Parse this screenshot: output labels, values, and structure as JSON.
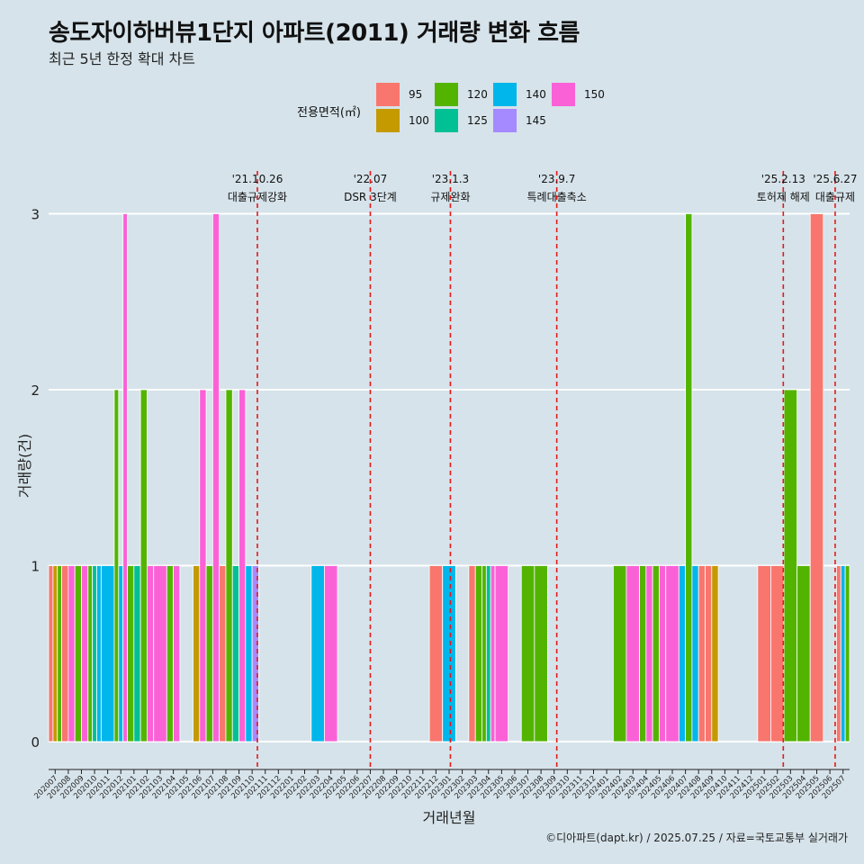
{
  "header": {
    "title": "송도자이하버뷰1단지 아파트(2011) 거래량 변화 흐름",
    "subtitle": "최근 5년 한정 확대 차트"
  },
  "legend": {
    "title": "전용면적(㎡)",
    "items": [
      {
        "label": "95",
        "color": "#F8766D"
      },
      {
        "label": "100",
        "color": "#C49A00"
      },
      {
        "label": "120",
        "color": "#53B400"
      },
      {
        "label": "125",
        "color": "#00C094"
      },
      {
        "label": "140",
        "color": "#00B6EB"
      },
      {
        "label": "145",
        "color": "#A58AFF"
      },
      {
        "label": "150",
        "color": "#FB61D7"
      }
    ]
  },
  "caption": "©디아파트(dapt.kr) / 2025.07.25 / 자료=국토교통부 실거래가",
  "chart_data": {
    "type": "bar",
    "title": "송도자이하버뷰1단지 아파트(2011) 거래량 변화 흐름",
    "xlabel": "거래년월",
    "ylabel": "거래량(건)",
    "ylim": [
      0,
      3
    ],
    "yticks": [
      0,
      1,
      2,
      3
    ],
    "categories": [
      "202007",
      "202008",
      "202009",
      "202010",
      "202011",
      "202012",
      "202101",
      "202102",
      "202103",
      "202104",
      "202105",
      "202106",
      "202107",
      "202108",
      "202109",
      "202110",
      "202111",
      "202112",
      "202201",
      "202202",
      "202203",
      "202204",
      "202205",
      "202206",
      "202207",
      "202208",
      "202209",
      "202210",
      "202211",
      "202212",
      "202301",
      "202302",
      "202303",
      "202304",
      "202305",
      "202306",
      "202307",
      "202308",
      "202309",
      "202310",
      "202311",
      "202312",
      "202401",
      "202402",
      "202403",
      "202404",
      "202405",
      "202406",
      "202407",
      "202408",
      "202409",
      "202410",
      "202411",
      "202412",
      "202501",
      "202502",
      "202503",
      "202504",
      "202505",
      "202506",
      "202507"
    ],
    "bars": [
      {
        "month": "202007",
        "groups": [
          {
            "area": "95",
            "value": 1
          },
          {
            "area": "100",
            "value": 1
          },
          {
            "area": "120",
            "value": 1
          }
        ]
      },
      {
        "month": "202008",
        "groups": [
          {
            "area": "95",
            "value": 1
          },
          {
            "area": "150",
            "value": 1
          }
        ]
      },
      {
        "month": "202009",
        "groups": [
          {
            "area": "120",
            "value": 1
          },
          {
            "area": "150",
            "value": 1
          }
        ]
      },
      {
        "month": "202010",
        "groups": [
          {
            "area": "120",
            "value": 1
          },
          {
            "area": "125",
            "value": 1
          },
          {
            "area": "140",
            "value": 1
          }
        ]
      },
      {
        "month": "202011",
        "groups": [
          {
            "area": "140",
            "value": 1
          }
        ]
      },
      {
        "month": "202012",
        "groups": [
          {
            "area": "120",
            "value": 2
          },
          {
            "area": "140",
            "value": 1
          },
          {
            "area": "150",
            "value": 3
          }
        ]
      },
      {
        "month": "202101",
        "groups": [
          {
            "area": "120",
            "value": 1
          },
          {
            "area": "125",
            "value": 1
          }
        ]
      },
      {
        "month": "202102",
        "groups": [
          {
            "area": "120",
            "value": 2
          },
          {
            "area": "150",
            "value": 1
          }
        ]
      },
      {
        "month": "202103",
        "groups": [
          {
            "area": "150",
            "value": 1
          }
        ]
      },
      {
        "month": "202104",
        "groups": [
          {
            "area": "120",
            "value": 1
          },
          {
            "area": "150",
            "value": 1
          }
        ]
      },
      {
        "month": "202106",
        "groups": [
          {
            "area": "100",
            "value": 1
          },
          {
            "area": "150",
            "value": 2
          }
        ]
      },
      {
        "month": "202107",
        "groups": [
          {
            "area": "120",
            "value": 1
          },
          {
            "area": "150",
            "value": 3
          }
        ]
      },
      {
        "month": "202108",
        "groups": [
          {
            "area": "95",
            "value": 1
          },
          {
            "area": "120",
            "value": 2
          }
        ]
      },
      {
        "month": "202109",
        "groups": [
          {
            "area": "125",
            "value": 1
          },
          {
            "area": "150",
            "value": 2
          }
        ]
      },
      {
        "month": "202110",
        "groups": [
          {
            "area": "140",
            "value": 1
          },
          {
            "area": "145",
            "value": 1
          }
        ]
      },
      {
        "month": "202203",
        "groups": [
          {
            "area": "140",
            "value": 1
          }
        ]
      },
      {
        "month": "202204",
        "groups": [
          {
            "area": "150",
            "value": 1
          }
        ]
      },
      {
        "month": "202212",
        "groups": [
          {
            "area": "95",
            "value": 1
          }
        ]
      },
      {
        "month": "202301",
        "groups": [
          {
            "area": "140",
            "value": 1
          }
        ]
      },
      {
        "month": "202303",
        "groups": [
          {
            "area": "95",
            "value": 1
          },
          {
            "area": "120",
            "value": 1
          }
        ]
      },
      {
        "month": "202304",
        "groups": [
          {
            "area": "120",
            "value": 1
          },
          {
            "area": "125",
            "value": 1
          },
          {
            "area": "150",
            "value": 1
          }
        ]
      },
      {
        "month": "202305",
        "groups": [
          {
            "area": "150",
            "value": 1
          }
        ]
      },
      {
        "month": "202307",
        "groups": [
          {
            "area": "120",
            "value": 1
          }
        ]
      },
      {
        "month": "202308",
        "groups": [
          {
            "area": "120",
            "value": 1
          }
        ]
      },
      {
        "month": "202402",
        "groups": [
          {
            "area": "120",
            "value": 1
          }
        ]
      },
      {
        "month": "202403",
        "groups": [
          {
            "area": "150",
            "value": 1
          }
        ]
      },
      {
        "month": "202404",
        "groups": [
          {
            "area": "120",
            "value": 1
          },
          {
            "area": "150",
            "value": 1
          }
        ]
      },
      {
        "month": "202405",
        "groups": [
          {
            "area": "120",
            "value": 1
          },
          {
            "area": "150",
            "value": 1
          }
        ]
      },
      {
        "month": "202406",
        "groups": [
          {
            "area": "150",
            "value": 1
          }
        ]
      },
      {
        "month": "202407",
        "groups": [
          {
            "area": "140",
            "value": 1
          },
          {
            "area": "120",
            "value": 3
          }
        ]
      },
      {
        "month": "202408",
        "groups": [
          {
            "area": "140",
            "value": 1
          },
          {
            "area": "95",
            "value": 1
          }
        ]
      },
      {
        "month": "202409",
        "groups": [
          {
            "area": "95",
            "value": 1
          },
          {
            "area": "100",
            "value": 1
          }
        ]
      },
      {
        "month": "202501",
        "groups": [
          {
            "area": "95",
            "value": 1
          }
        ]
      },
      {
        "month": "202502",
        "groups": [
          {
            "area": "95",
            "value": 1
          }
        ]
      },
      {
        "month": "202503",
        "groups": [
          {
            "area": "120",
            "value": 2
          }
        ]
      },
      {
        "month": "202504",
        "groups": [
          {
            "area": "120",
            "value": 1
          }
        ]
      },
      {
        "month": "202505",
        "groups": [
          {
            "area": "95",
            "value": 3
          }
        ]
      },
      {
        "month": "202507",
        "groups": [
          {
            "area": "95",
            "value": 1
          },
          {
            "area": "140",
            "value": 1
          },
          {
            "area": "120",
            "value": 1
          }
        ]
      }
    ],
    "events": [
      {
        "date": "'21.10.26",
        "label": "대출규제강화",
        "month": "202110",
        "offset": 0.4
      },
      {
        "date": "'22.07",
        "label": "DSR 3단계",
        "month": "202207",
        "offset": 0.0
      },
      {
        "date": "'23.1.3",
        "label": "규제완화",
        "month": "202301",
        "offset": 0.1
      },
      {
        "date": "'23.9.7",
        "label": "특례대출축소",
        "month": "202309",
        "offset": 0.2
      },
      {
        "date": "'25.2.13",
        "label": "토허제 해제",
        "month": "202502",
        "offset": 0.45
      },
      {
        "date": "'25.6.27",
        "label": "대출규제",
        "month": "202506",
        "offset": 0.4
      }
    ]
  }
}
